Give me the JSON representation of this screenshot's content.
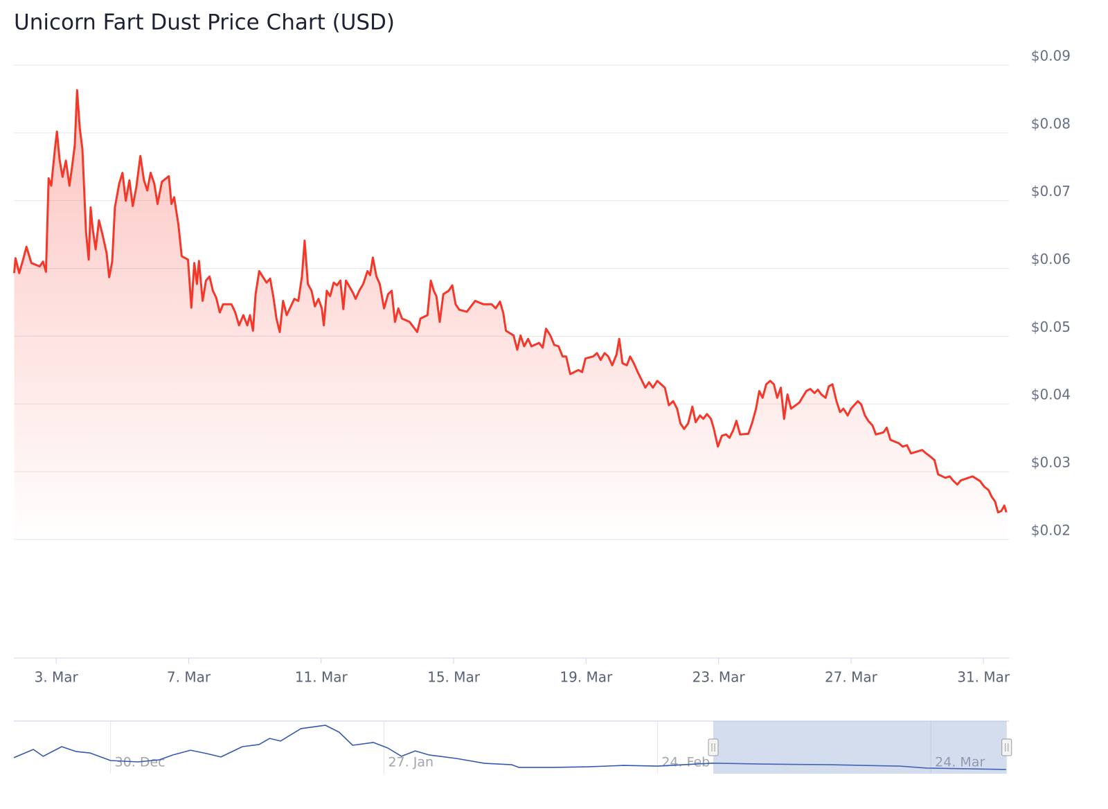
{
  "chart_data": [
    {
      "type": "line",
      "title": "Unicorn Fart Dust Price Chart (USD)",
      "color": "#f5372a",
      "area": true,
      "grid": true,
      "x": [
        1.73,
        1.77,
        1.88,
        2.0,
        2.1,
        2.25,
        2.5,
        2.6,
        2.69,
        2.77,
        2.85,
        2.96,
        3.02,
        3.1,
        3.19,
        3.29,
        3.4,
        3.48,
        3.56,
        3.63,
        3.71,
        3.79,
        3.9,
        3.98,
        4.04,
        4.1,
        4.19,
        4.29,
        4.4,
        4.52,
        4.6,
        4.69,
        4.77,
        4.9,
        5.0,
        5.1,
        5.21,
        5.31,
        5.42,
        5.54,
        5.65,
        5.75,
        5.85,
        5.96,
        6.06,
        6.19,
        6.4,
        6.48,
        6.56,
        6.69,
        6.79,
        6.98,
        7.08,
        7.17,
        7.25,
        7.31,
        7.42,
        7.52,
        7.63,
        7.73,
        7.83,
        7.94,
        8.04,
        8.29,
        8.4,
        8.52,
        8.65,
        8.77,
        8.85,
        8.94,
        9.02,
        9.13,
        9.35,
        9.46,
        9.56,
        9.65,
        9.75,
        9.85,
        9.96,
        10.19,
        10.31,
        10.42,
        10.5,
        10.6,
        10.71,
        10.81,
        10.92,
        11.02,
        11.08,
        11.17,
        11.27,
        11.38,
        11.48,
        11.58,
        11.67,
        11.75,
        11.96,
        12.04,
        12.15,
        12.27,
        12.4,
        12.48,
        12.56,
        12.67,
        12.77,
        12.9,
        13.02,
        13.13,
        13.23,
        13.33,
        13.44,
        13.67,
        13.9,
        14.0,
        14.21,
        14.31,
        14.4,
        14.48,
        14.58,
        14.69,
        14.85,
        14.96,
        15.06,
        15.17,
        15.4,
        15.65,
        15.9,
        16.15,
        16.27,
        16.4,
        16.5,
        16.58,
        16.81,
        16.92,
        17.02,
        17.13,
        17.25,
        17.35,
        17.58,
        17.69,
        17.79,
        17.92,
        18.04,
        18.17,
        18.29,
        18.4,
        18.52,
        18.77,
        18.88,
        18.98,
        19.21,
        19.33,
        19.44,
        19.56,
        19.67,
        19.79,
        19.92,
        20.0,
        20.1,
        20.23,
        20.33,
        20.44,
        20.56,
        20.67,
        20.79,
        20.9,
        21.02,
        21.15,
        21.38,
        21.5,
        21.63,
        21.75,
        21.85,
        21.96,
        22.08,
        22.21,
        22.31,
        22.44,
        22.54,
        22.65,
        22.77,
        22.85,
        22.98,
        23.1,
        23.23,
        23.33,
        23.44,
        23.54,
        23.65,
        23.9,
        24.02,
        24.13,
        24.23,
        24.33,
        24.44,
        24.56,
        24.67,
        24.77,
        24.88,
        24.98,
        25.08,
        25.19,
        25.44,
        25.65,
        25.77,
        25.9,
        26.0,
        26.1,
        26.23,
        26.33,
        26.44,
        26.56,
        26.67,
        26.77,
        26.9,
        27.0,
        27.21,
        27.31,
        27.42,
        27.52,
        27.65,
        27.75,
        27.98,
        28.08,
        28.19,
        28.44,
        28.56,
        28.69,
        28.81,
        29.15,
        29.27,
        29.4,
        29.52,
        29.63,
        29.85,
        29.98,
        30.08,
        30.21,
        30.31,
        30.67,
        30.9,
        31.02,
        31.15,
        31.25,
        31.35,
        31.44,
        31.54,
        31.63,
        31.69
      ],
      "values": [
        0.0593,
        0.0615,
        0.0593,
        0.0613,
        0.0632,
        0.0608,
        0.0603,
        0.061,
        0.0595,
        0.0733,
        0.0722,
        0.0776,
        0.0802,
        0.0761,
        0.0735,
        0.0759,
        0.0722,
        0.0751,
        0.0782,
        0.0863,
        0.0807,
        0.0776,
        0.0654,
        0.0613,
        0.069,
        0.0659,
        0.0628,
        0.0671,
        0.0649,
        0.0623,
        0.0587,
        0.061,
        0.069,
        0.0725,
        0.0741,
        0.07,
        0.073,
        0.0692,
        0.072,
        0.0766,
        0.073,
        0.0715,
        0.0741,
        0.0725,
        0.0695,
        0.0728,
        0.0736,
        0.0695,
        0.0705,
        0.0664,
        0.0618,
        0.0613,
        0.0542,
        0.0608,
        0.0577,
        0.0611,
        0.0552,
        0.0582,
        0.0588,
        0.0567,
        0.0557,
        0.0535,
        0.0547,
        0.0547,
        0.0536,
        0.0516,
        0.0531,
        0.0516,
        0.0531,
        0.0508,
        0.0562,
        0.0596,
        0.0579,
        0.0585,
        0.0557,
        0.0526,
        0.0506,
        0.0552,
        0.0531,
        0.0555,
        0.0552,
        0.0588,
        0.0641,
        0.0577,
        0.0567,
        0.0544,
        0.0555,
        0.0541,
        0.0516,
        0.0567,
        0.0559,
        0.0579,
        0.0575,
        0.0582,
        0.054,
        0.0582,
        0.0564,
        0.0555,
        0.0567,
        0.0577,
        0.0596,
        0.059,
        0.0616,
        0.0588,
        0.0577,
        0.0541,
        0.0562,
        0.0567,
        0.0521,
        0.0541,
        0.0526,
        0.0521,
        0.0506,
        0.0526,
        0.0531,
        0.0582,
        0.0567,
        0.0559,
        0.0521,
        0.0562,
        0.0567,
        0.0575,
        0.0547,
        0.0539,
        0.0536,
        0.0552,
        0.0547,
        0.0547,
        0.0541,
        0.0551,
        0.0534,
        0.0508,
        0.0501,
        0.048,
        0.0501,
        0.0485,
        0.0496,
        0.0485,
        0.049,
        0.0483,
        0.0511,
        0.0501,
        0.0487,
        0.0485,
        0.047,
        0.047,
        0.0444,
        0.045,
        0.0447,
        0.0467,
        0.047,
        0.0475,
        0.0465,
        0.0475,
        0.047,
        0.0457,
        0.0473,
        0.0496,
        0.046,
        0.0457,
        0.047,
        0.046,
        0.0447,
        0.0436,
        0.0424,
        0.0432,
        0.0424,
        0.0434,
        0.0424,
        0.0398,
        0.0404,
        0.0393,
        0.0371,
        0.0363,
        0.0371,
        0.0396,
        0.0373,
        0.0383,
        0.0378,
        0.0385,
        0.0378,
        0.0365,
        0.0337,
        0.0353,
        0.0355,
        0.035,
        0.0361,
        0.0375,
        0.0355,
        0.0356,
        0.0373,
        0.0393,
        0.0419,
        0.0409,
        0.0429,
        0.0434,
        0.0429,
        0.0409,
        0.0424,
        0.0378,
        0.0414,
        0.0393,
        0.0402,
        0.0419,
        0.0422,
        0.0416,
        0.0421,
        0.0414,
        0.0409,
        0.0426,
        0.0429,
        0.0404,
        0.0388,
        0.0393,
        0.0383,
        0.0393,
        0.0404,
        0.0399,
        0.0383,
        0.0375,
        0.0368,
        0.0355,
        0.0358,
        0.0365,
        0.0347,
        0.0342,
        0.0337,
        0.0339,
        0.0327,
        0.0332,
        0.0327,
        0.0322,
        0.0317,
        0.0296,
        0.0291,
        0.0293,
        0.0287,
        0.0281,
        0.0287,
        0.0293,
        0.0286,
        0.0278,
        0.0273,
        0.0263,
        0.0256,
        0.024,
        0.0242,
        0.025,
        0.024
      ],
      "xlim": [
        1.72,
        31.77
      ],
      "ylim": [
        0.0025,
        0.09
      ],
      "xticks": [
        {
          "value": 3,
          "label": "3. Mar"
        },
        {
          "value": 7,
          "label": "7. Mar"
        },
        {
          "value": 11,
          "label": "11. Mar"
        },
        {
          "value": 15,
          "label": "15. Mar"
        },
        {
          "value": 19,
          "label": "19. Mar"
        },
        {
          "value": 23,
          "label": "23. Mar"
        },
        {
          "value": 27,
          "label": "27. Mar"
        },
        {
          "value": 31,
          "label": "31. Mar"
        }
      ],
      "yticks": [
        {
          "value": 0.02,
          "label": "$0.02"
        },
        {
          "value": 0.03,
          "label": "$0.03"
        },
        {
          "value": 0.04,
          "label": "$0.04"
        },
        {
          "value": 0.05,
          "label": "$0.05"
        },
        {
          "value": 0.06,
          "label": "$0.06"
        },
        {
          "value": 0.07,
          "label": "$0.07"
        },
        {
          "value": 0.08,
          "label": "$0.08"
        },
        {
          "value": 0.09,
          "label": "$0.09"
        }
      ]
    },
    {
      "type": "line",
      "color": "#3358b0",
      "grid": true,
      "x": [
        -69.9,
        -67.9,
        -66.9,
        -65.0,
        -63.5,
        -62.1,
        -60.0,
        -57.2,
        -55.0,
        -53.6,
        -51.8,
        -50.1,
        -48.7,
        -46.5,
        -44.8,
        -43.7,
        -42.6,
        -40.5,
        -38.0,
        -36.6,
        -35.2,
        -33.1,
        -31.6,
        -30.2,
        -28.8,
        -27.4,
        -24.6,
        -21.7,
        -18.9,
        -18.2,
        -14.6,
        -11.1,
        -7.5,
        -4.0,
        1.7,
        6.6,
        13.7,
        20.8,
        23.6,
        31.7
      ],
      "values": [
        0.091,
        0.138,
        0.099,
        0.154,
        0.126,
        0.118,
        0.075,
        0.067,
        0.079,
        0.107,
        0.134,
        0.114,
        0.095,
        0.154,
        0.166,
        0.201,
        0.186,
        0.257,
        0.276,
        0.237,
        0.162,
        0.178,
        0.146,
        0.099,
        0.13,
        0.107,
        0.087,
        0.059,
        0.051,
        0.036,
        0.036,
        0.039,
        0.047,
        0.043,
        0.06,
        0.055,
        0.051,
        0.043,
        0.032,
        0.024
      ],
      "xlim": [
        -69.9,
        32.0
      ],
      "ylim": [
        0,
        0.3
      ],
      "xticks": [
        {
          "value": -60,
          "label": "30. Dec"
        },
        {
          "value": -32,
          "label": "27. Jan"
        },
        {
          "value": -4,
          "label": "24. Feb"
        },
        {
          "value": 24,
          "label": "24. Mar"
        }
      ]
    }
  ]
}
